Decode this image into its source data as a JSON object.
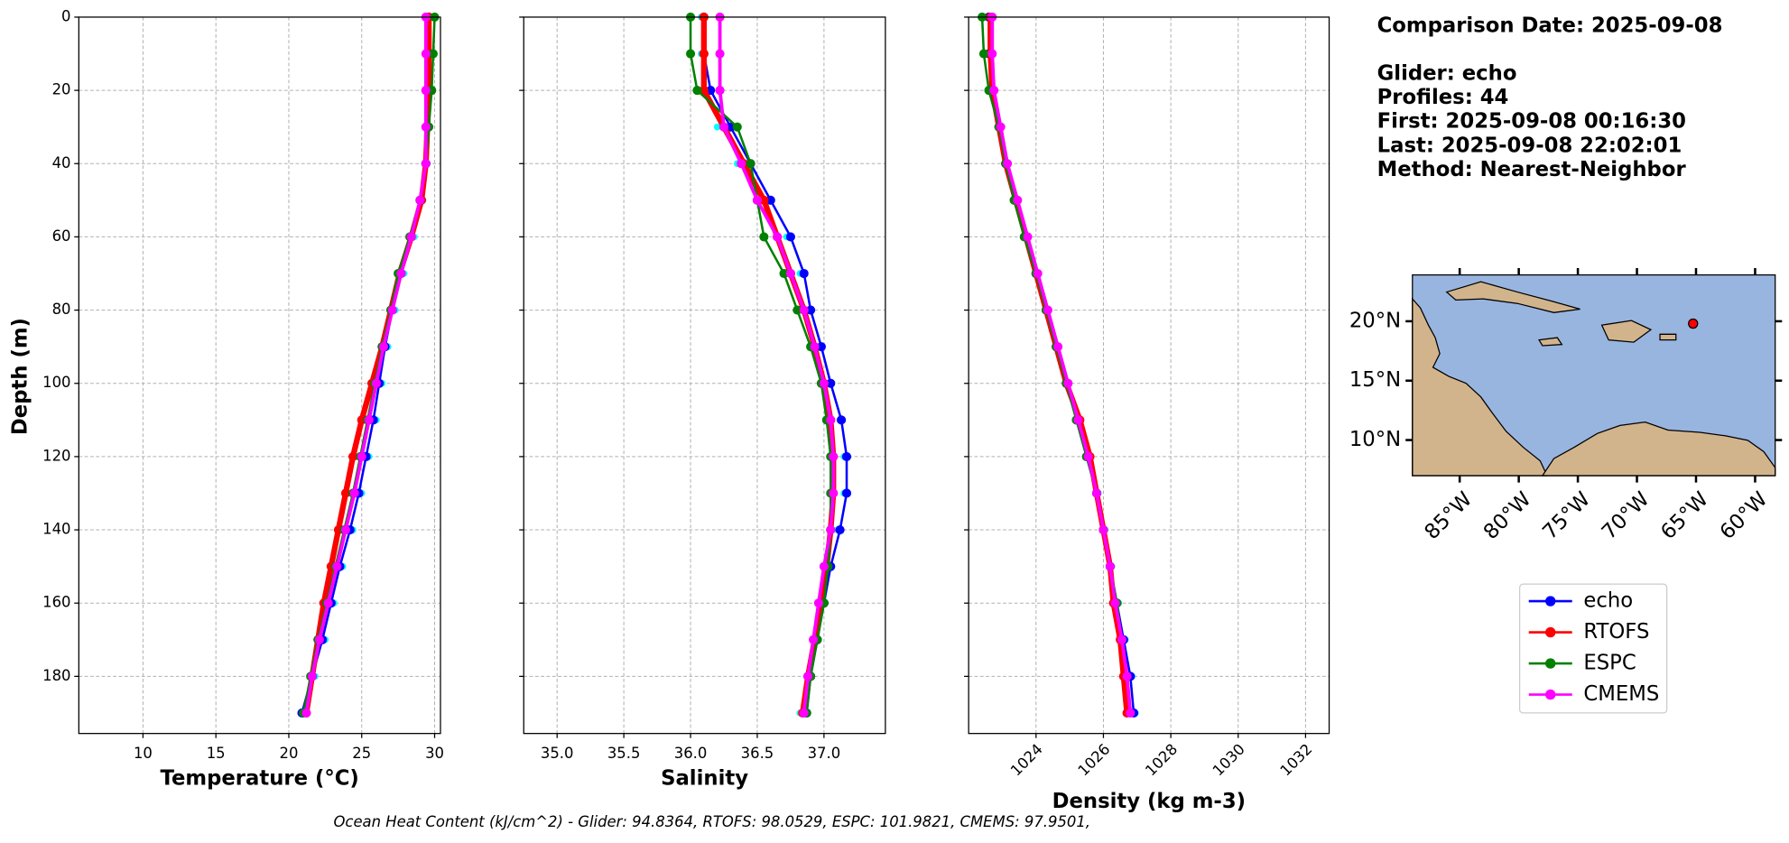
{
  "chart_data": [
    {
      "type": "line",
      "xlabel": "Temperature (°C)",
      "ylabel": "Depth (m)",
      "xlim": [
        5.6,
        30.4
      ],
      "ylim": [
        0,
        195.6
      ],
      "xticks": [
        10,
        15,
        20,
        25,
        30
      ],
      "yticks": [
        0,
        20,
        40,
        60,
        80,
        100,
        120,
        140,
        160,
        180
      ],
      "grid": true,
      "depth": [
        0,
        10,
        20,
        30,
        40,
        50,
        60,
        70,
        80,
        90,
        100,
        110,
        120,
        130,
        140,
        150,
        160,
        170,
        180,
        190
      ],
      "series": [
        {
          "name": "echo",
          "color": "#0000ff",
          "linewidth": 2,
          "values": [
            29.6,
            29.6,
            29.6,
            29.5,
            29.4,
            29.0,
            28.4,
            27.7,
            27.1,
            26.6,
            26.2,
            25.8,
            25.3,
            24.8,
            24.2,
            23.5,
            22.9,
            22.3,
            21.6,
            20.9
          ]
        },
        {
          "name": "RTOFS",
          "color": "#ff0000",
          "linewidth": 5,
          "values": [
            29.6,
            29.6,
            29.6,
            29.5,
            29.4,
            29.1,
            28.4,
            27.6,
            27.0,
            26.4,
            25.7,
            25.0,
            24.4,
            23.9,
            23.4,
            22.9,
            22.4,
            22.0,
            21.6,
            21.2
          ]
        },
        {
          "name": "ESPC",
          "color": "#008000",
          "linewidth": 2,
          "values": [
            30.0,
            29.9,
            29.8,
            29.6,
            29.4,
            29.0,
            28.3,
            27.5,
            27.0,
            26.4,
            25.9,
            25.4,
            24.9,
            24.4,
            23.8,
            23.2,
            22.6,
            22.0,
            21.5,
            21.0
          ]
        },
        {
          "name": "CMEMS",
          "color": "#ff00ff",
          "linewidth": 3,
          "values": [
            29.4,
            29.4,
            29.4,
            29.4,
            29.4,
            29.0,
            28.4,
            27.7,
            27.1,
            26.5,
            26.0,
            25.5,
            25.0,
            24.5,
            23.9,
            23.3,
            22.7,
            22.1,
            21.6,
            21.2
          ]
        },
        {
          "color": "#00ffff",
          "style": "scatter",
          "values": [
            29.7,
            29.7,
            29.7,
            29.6,
            29.5,
            29.2,
            28.6,
            27.9,
            27.3,
            26.8,
            26.4,
            26.0,
            25.5,
            25.0,
            24.4,
            23.7,
            23.1,
            22.5,
            21.8,
            21.1
          ]
        }
      ]
    },
    {
      "type": "line",
      "xlabel": "Salinity",
      "xlim": [
        34.75,
        37.46
      ],
      "ylim": [
        0,
        195.6
      ],
      "xticks": [
        {
          "value": 35,
          "label": "35.0"
        },
        35.5,
        {
          "value": 36,
          "label": "36.0"
        },
        36.5,
        {
          "value": 37,
          "label": "37.0"
        }
      ],
      "yticks": [
        0,
        20,
        40,
        60,
        80,
        100,
        120,
        140,
        160,
        180
      ],
      "grid": true,
      "depth": [
        0,
        10,
        20,
        30,
        40,
        50,
        60,
        70,
        80,
        90,
        100,
        110,
        120,
        130,
        140,
        150,
        160,
        170,
        180,
        190
      ],
      "series": [
        {
          "name": "echo",
          "color": "#0000ff",
          "linewidth": 2,
          "values": [
            36.1,
            36.1,
            36.15,
            36.3,
            36.45,
            36.6,
            36.75,
            36.85,
            36.9,
            36.98,
            37.05,
            37.13,
            37.17,
            37.17,
            37.12,
            37.05,
            37.0,
            36.95,
            36.9,
            36.87
          ]
        },
        {
          "name": "RTOFS",
          "color": "#ff0000",
          "linewidth": 5,
          "values": [
            36.1,
            36.1,
            36.1,
            36.25,
            36.4,
            36.55,
            36.65,
            36.75,
            36.85,
            36.93,
            37.0,
            37.05,
            37.07,
            37.07,
            37.05,
            37.02,
            36.98,
            36.93,
            36.88,
            36.84
          ]
        },
        {
          "name": "ESPC",
          "color": "#008000",
          "linewidth": 2,
          "values": [
            36.0,
            36.0,
            36.05,
            36.35,
            36.45,
            36.5,
            36.55,
            36.7,
            36.8,
            36.9,
            36.98,
            37.02,
            37.05,
            37.05,
            37.05,
            37.03,
            37.0,
            36.95,
            36.9,
            36.87
          ]
        },
        {
          "name": "CMEMS",
          "color": "#ff00ff",
          "linewidth": 3,
          "values": [
            36.22,
            36.22,
            36.22,
            36.25,
            36.38,
            36.5,
            36.65,
            36.75,
            36.85,
            36.93,
            37.0,
            37.05,
            37.07,
            37.07,
            37.05,
            37.0,
            36.96,
            36.92,
            36.88,
            36.85
          ]
        },
        {
          "color": "#00ffff",
          "style": "scatter",
          "values": [
            36.08,
            36.08,
            36.1,
            36.2,
            36.35,
            36.55,
            36.72,
            36.82,
            36.9,
            36.97,
            37.05,
            37.12,
            37.15,
            37.15,
            37.1,
            37.02,
            36.97,
            36.92,
            36.87,
            36.82
          ]
        }
      ]
    },
    {
      "type": "line",
      "xlabel": "Density (kg m-3)",
      "xlim": [
        1022,
        1032.7
      ],
      "ylim": [
        0,
        195.6
      ],
      "xticks": [
        1024,
        1026,
        1028,
        1030,
        1032
      ],
      "yticks": [
        0,
        20,
        40,
        60,
        80,
        100,
        120,
        140,
        160,
        180
      ],
      "grid": true,
      "depth": [
        0,
        10,
        20,
        30,
        40,
        50,
        60,
        70,
        80,
        90,
        100,
        110,
        120,
        130,
        140,
        150,
        160,
        170,
        180,
        190
      ],
      "series": [
        {
          "name": "echo",
          "color": "#0000ff",
          "linewidth": 2,
          "values": [
            1022.6,
            1022.6,
            1022.7,
            1022.9,
            1023.1,
            1023.4,
            1023.7,
            1024.0,
            1024.3,
            1024.6,
            1024.9,
            1025.2,
            1025.5,
            1025.8,
            1026.0,
            1026.2,
            1026.4,
            1026.6,
            1026.8,
            1026.9
          ]
        },
        {
          "name": "RTOFS",
          "color": "#ff0000",
          "linewidth": 5,
          "values": [
            1022.65,
            1022.65,
            1022.7,
            1022.9,
            1023.1,
            1023.4,
            1023.7,
            1024.0,
            1024.3,
            1024.6,
            1024.9,
            1025.3,
            1025.6,
            1025.8,
            1026.0,
            1026.2,
            1026.3,
            1026.5,
            1026.6,
            1026.7
          ]
        },
        {
          "name": "ESPC",
          "color": "#008000",
          "linewidth": 2,
          "values": [
            1022.4,
            1022.45,
            1022.6,
            1022.9,
            1023.1,
            1023.35,
            1023.65,
            1024.0,
            1024.3,
            1024.6,
            1024.9,
            1025.2,
            1025.5,
            1025.8,
            1026.0,
            1026.2,
            1026.4,
            1026.55,
            1026.7,
            1026.8
          ]
        },
        {
          "name": "CMEMS",
          "color": "#ff00ff",
          "linewidth": 3,
          "values": [
            1022.7,
            1022.7,
            1022.75,
            1022.95,
            1023.15,
            1023.45,
            1023.75,
            1024.05,
            1024.35,
            1024.65,
            1024.95,
            1025.25,
            1025.55,
            1025.8,
            1026.0,
            1026.2,
            1026.35,
            1026.55,
            1026.7,
            1026.8
          ]
        },
        {
          "color": "#00ffff",
          "style": "scatter",
          "values": [
            1022.65,
            1022.65,
            1022.75,
            1022.95,
            1023.15,
            1023.45,
            1023.75,
            1024.05,
            1024.35,
            1024.65,
            1024.95,
            1025.25,
            1025.55,
            1025.85,
            1026.05,
            1026.25,
            1026.45,
            1026.65,
            1026.85,
            1026.95
          ]
        }
      ]
    },
    {
      "type": "map",
      "xlim": [
        -89,
        -58.3
      ],
      "ylim": [
        7.0,
        23.9
      ],
      "xticks": [
        {
          "value": -85,
          "label": "85°W"
        },
        {
          "value": -80,
          "label": "80°W"
        },
        {
          "value": -75,
          "label": "75°W"
        },
        {
          "value": -70,
          "label": "70°W"
        },
        {
          "value": -65,
          "label": "65°W"
        },
        {
          "value": -60,
          "label": "60°W"
        }
      ],
      "yticks": [
        {
          "value": 10,
          "label": "10°N"
        },
        {
          "value": 15,
          "label": "15°N"
        },
        {
          "value": 20,
          "label": "20°N"
        }
      ],
      "point": {
        "x": -65.25,
        "y": 19.8,
        "color": "#ff0000"
      }
    }
  ],
  "info": [
    "Comparison Date: 2025-09-08",
    "Glider: echo",
    "Profiles: 44",
    "First: 2025-09-08 00:16:30",
    "Last: 2025-09-08 22:02:01",
    "Method: Nearest-Neighbor"
  ],
  "footer": "Ocean Heat Content (kJ/cm^2) - Glider: 94.8364,  RTOFS: 98.0529,  ESPC: 101.9821,  CMEMS: 97.9501,"
}
